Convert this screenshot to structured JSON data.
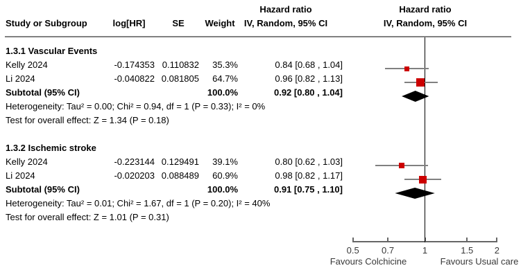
{
  "header": {
    "col_study": "Study or Subgroup",
    "col_loghr": "log[HR]",
    "col_se": "SE",
    "col_weight": "Weight",
    "ci_col_line1": "Hazard ratio",
    "ci_col_line2": "IV, Random, 95% CI",
    "plot_col_line1": "Hazard ratio",
    "plot_col_line2": "IV, Random, 95% CI"
  },
  "colors": {
    "marker": "#CC0000",
    "diamond": "#000000",
    "ci_line": "#808080",
    "rule": "#808080",
    "axis": "#666666"
  },
  "chart_data": {
    "type": "forest",
    "x_scale": "log",
    "axis_range": [
      0.5,
      2
    ],
    "axis_ticks": [
      {
        "v": 0.5,
        "label": "0.5"
      },
      {
        "v": 0.7,
        "label": "0.7"
      },
      {
        "v": 1,
        "label": "1"
      },
      {
        "v": 1.5,
        "label": "1.5"
      },
      {
        "v": 2,
        "label": "2"
      }
    ],
    "favours_left": "Favours Colchicine",
    "favours_right": "Favours Usual care",
    "sections": [
      {
        "heading": "1.3.1 Vascular Events",
        "studies": [
          {
            "label": "Kelly 2024",
            "log_hr": "-0.174353",
            "se": "0.110832",
            "weight": "35.3%",
            "weight_pct": 35.3,
            "ci_text": "0.84 [0.68 , 1.04]",
            "hr": 0.84,
            "ci_low": 0.68,
            "ci_high": 1.04
          },
          {
            "label": "Li 2024",
            "log_hr": "-0.040822",
            "se": "0.081805",
            "weight": "64.7%",
            "weight_pct": 64.7,
            "ci_text": "0.96 [0.82 , 1.13]",
            "hr": 0.96,
            "ci_low": 0.82,
            "ci_high": 1.13
          }
        ],
        "subtotal": {
          "label": "Subtotal (95% CI)",
          "weight": "100.0%",
          "ci_text": "0.92 [0.80 , 1.04]",
          "hr": 0.92,
          "ci_low": 0.8,
          "ci_high": 1.04
        },
        "heterogeneity": "Heterogeneity: Tau² = 0.00; Chi² = 0.94, df = 1 (P = 0.33); I² = 0%",
        "overall_effect": "Test for overall effect: Z = 1.34 (P = 0.18)"
      },
      {
        "heading": "1.3.2 Ischemic stroke",
        "studies": [
          {
            "label": "Kelly 2024",
            "log_hr": "-0.223144",
            "se": "0.129491",
            "weight": "39.1%",
            "weight_pct": 39.1,
            "ci_text": "0.80 [0.62 , 1.03]",
            "hr": 0.8,
            "ci_low": 0.62,
            "ci_high": 1.03
          },
          {
            "label": "Li 2024",
            "log_hr": "-0.020203",
            "se": "0.088489",
            "weight": "60.9%",
            "weight_pct": 60.9,
            "ci_text": "0.98 [0.82 , 1.17]",
            "hr": 0.98,
            "ci_low": 0.82,
            "ci_high": 1.17
          }
        ],
        "subtotal": {
          "label": "Subtotal (95% CI)",
          "weight": "100.0%",
          "ci_text": "0.91 [0.75 , 1.10]",
          "hr": 0.91,
          "ci_low": 0.75,
          "ci_high": 1.1
        },
        "heterogeneity": "Heterogeneity: Tau² = 0.01; Chi² = 1.67, df = 1 (P = 0.20); I² = 40%",
        "overall_effect": "Test for overall effect: Z = 1.01 (P = 0.31)"
      }
    ]
  }
}
